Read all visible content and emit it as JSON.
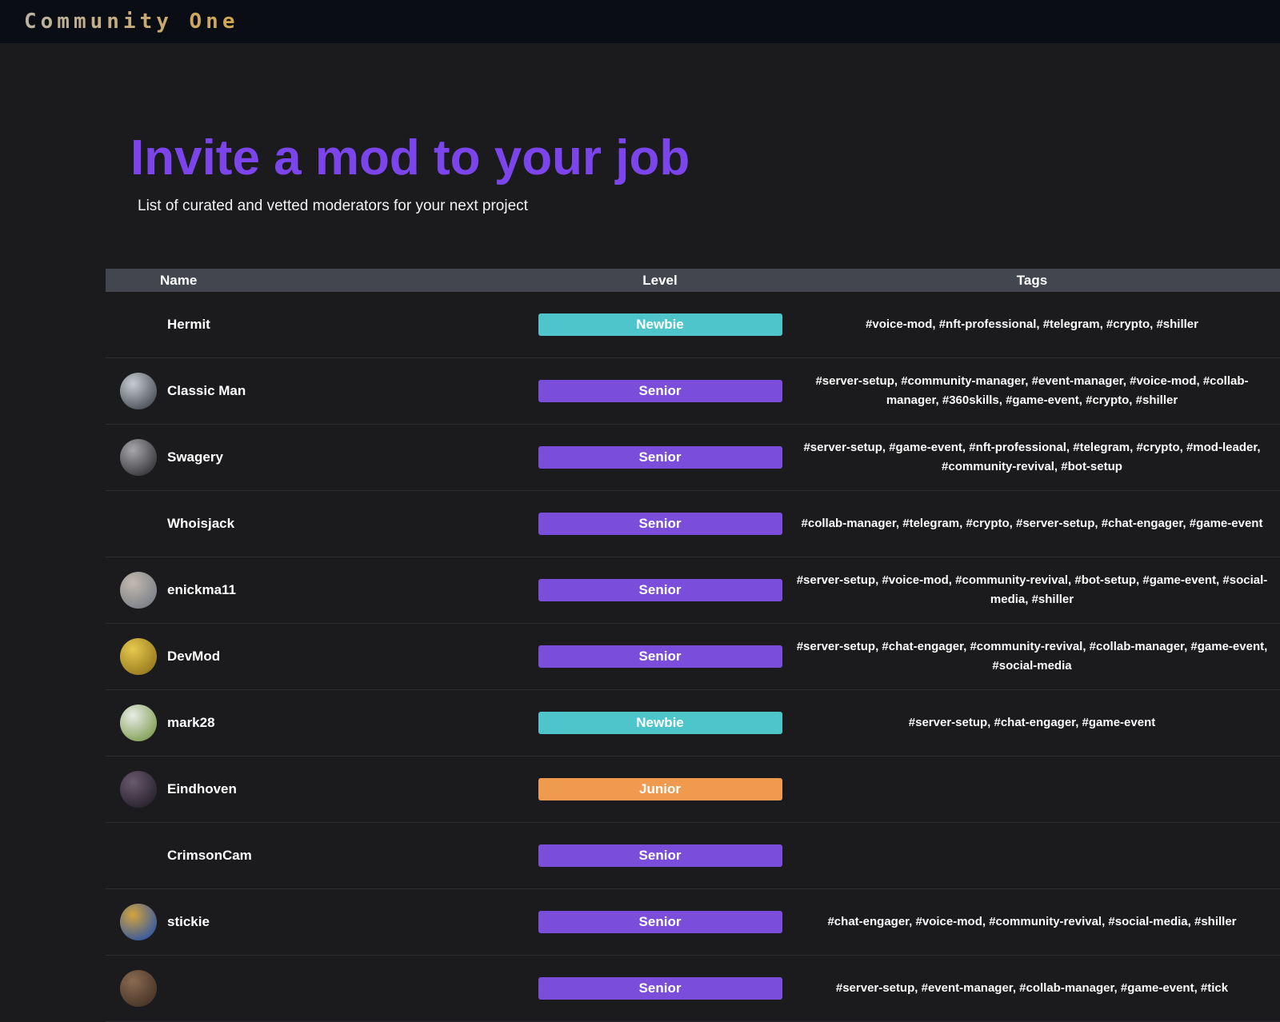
{
  "nav": {
    "brand": "Community One",
    "brand_colors": [
      "#b9b2a4",
      "#d2a552"
    ]
  },
  "page": {
    "title": "Invite a mod to your job",
    "title_color": "#7c45ec",
    "subtitle": "List of curated and vetted moderators for your next project"
  },
  "table": {
    "columns": [
      "Name",
      "Level",
      "Tags"
    ],
    "level_colors": {
      "Newbie": "#4ec5cb",
      "Senior": "#7a4edb",
      "Junior": "#f09a50"
    },
    "rows": [
      {
        "name": "Hermit",
        "avatar": null,
        "level": "Newbie",
        "tags": "#voice-mod, #nft-professional, #telegram, #crypto, #shiller"
      },
      {
        "name": "Classic Man",
        "avatar": [
          "#c8ccd2",
          "#50555e"
        ],
        "level": "Senior",
        "tags": "#server-setup, #community-manager, #event-manager, #voice-mod, #collab-manager, #360skills, #game-event, #crypto, #shiller"
      },
      {
        "name": "Swagery",
        "avatar": [
          "#a8a8ac",
          "#3c3c40"
        ],
        "level": "Senior",
        "tags": "#server-setup, #game-event, #nft-professional, #telegram, #crypto, #mod-leader, #community-revival, #bot-setup"
      },
      {
        "name": "Whoisjack",
        "avatar": null,
        "level": "Senior",
        "tags": "#collab-manager, #telegram, #crypto, #server-setup, #chat-engager, #game-event"
      },
      {
        "name": "enickma11",
        "avatar": [
          "#c2bab0",
          "#7e8288"
        ],
        "level": "Senior",
        "tags": "#server-setup, #voice-mod, #community-revival, #bot-setup, #game-event, #social-media, #shiller"
      },
      {
        "name": "DevMod",
        "avatar": [
          "#e6c94e",
          "#9a7d20"
        ],
        "level": "Senior",
        "tags": "#server-setup, #chat-engager, #community-revival, #collab-manager, #game-event, #social-media"
      },
      {
        "name": "mark28",
        "avatar": [
          "#e8ece6",
          "#86a25c"
        ],
        "level": "Newbie",
        "tags": "#server-setup, #chat-engager, #game-event"
      },
      {
        "name": "Eindhoven",
        "avatar": [
          "#6a5a6e",
          "#2a2430"
        ],
        "level": "Junior",
        "tags": ""
      },
      {
        "name": "CrimsonCam",
        "avatar": null,
        "level": "Senior",
        "tags": ""
      },
      {
        "name": "stickie",
        "avatar": [
          "#d2a43c",
          "#3a5a9e"
        ],
        "level": "Senior",
        "tags": "#chat-engager, #voice-mod, #community-revival, #social-media, #shiller"
      },
      {
        "name": "",
        "avatar": [
          "#8a6a52",
          "#4a3628"
        ],
        "level": "Senior",
        "tags": "#server-setup, #event-manager, #collab-manager, #game-event, #tick"
      }
    ]
  }
}
